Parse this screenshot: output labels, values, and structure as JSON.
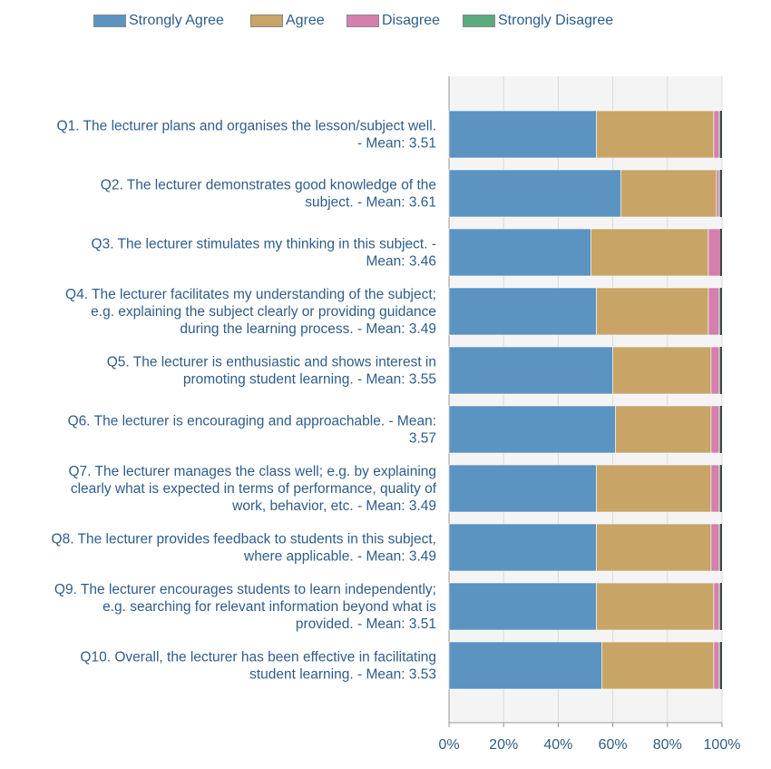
{
  "chart_data": {
    "type": "bar",
    "orientation": "horizontal",
    "stacked": "percent",
    "categories": [
      "Q1. The lecturer plans and organises the lesson/subject well. - Mean: 3.51",
      "Q2. The lecturer demonstrates good knowledge of the subject. - Mean: 3.61",
      "Q3. The lecturer stimulates my thinking in this subject. - Mean: 3.46",
      "Q4. The lecturer facilitates my understanding of the subject; e.g. explaining the subject clearly or providing guidance during the learning process. - Mean: 3.49",
      "Q5. The lecturer is enthusiastic and shows interest in promoting student learning. - Mean: 3.55",
      "Q6. The lecturer is encouraging and approachable. - Mean: 3.57",
      "Q7. The lecturer manages the class well; e.g. by explaining clearly what is expected in terms of performance, quality of work, behavior, etc. - Mean: 3.49",
      "Q8. The lecturer provides feedback to students in this subject, where applicable. - Mean: 3.49",
      "Q9. The lecturer encourages students to learn independently; e.g. searching for relevant information beyond what is provided. - Mean: 3.51",
      "Q10. Overall, the lecturer has been effective in facilitating student learning. - Mean: 3.53"
    ],
    "category_lines": [
      [
        "Q1. The lecturer plans and organises the lesson/subject well.",
        "- Mean: 3.51"
      ],
      [
        "Q2. The lecturer demonstrates good knowledge of the",
        "subject. - Mean: 3.61"
      ],
      [
        "Q3. The lecturer stimulates my thinking in this subject. -",
        "Mean: 3.46"
      ],
      [
        "Q4. The lecturer facilitates my understanding of the subject;",
        "e.g. explaining the subject clearly or providing guidance",
        "during the learning process. - Mean: 3.49"
      ],
      [
        "Q5. The lecturer is enthusiastic and shows interest in",
        "promoting student learning. - Mean: 3.55"
      ],
      [
        "Q6. The lecturer is encouraging and approachable. - Mean:",
        "3.57"
      ],
      [
        "Q7. The lecturer manages the class well; e.g. by explaining",
        "clearly what is expected in terms of performance, quality of",
        "work, behavior, etc. - Mean: 3.49"
      ],
      [
        "Q8. The lecturer provides feedback to students in this subject,",
        "where applicable. - Mean: 3.49"
      ],
      [
        "Q9. The lecturer encourages students to learn independently;",
        "e.g. searching for relevant information beyond what is",
        "provided. - Mean: 3.51"
      ],
      [
        "Q10. Overall, the lecturer has been effective in facilitating",
        "student learning. - Mean: 3.53"
      ]
    ],
    "series": [
      {
        "name": "Strongly Agree",
        "color": "#5b93c1",
        "values": [
          54,
          63,
          52,
          54,
          60,
          61,
          54,
          54,
          54,
          56
        ]
      },
      {
        "name": "Agree",
        "color": "#c8a566",
        "values": [
          43,
          35,
          43,
          41,
          36,
          35,
          42,
          42,
          43,
          41
        ]
      },
      {
        "name": "Disagree",
        "color": "#d47fad",
        "values": [
          2,
          1,
          5,
          4,
          3,
          3,
          3,
          3,
          2,
          2
        ]
      },
      {
        "name": "Strongly Disagree",
        "color": "#5aab7e",
        "values": [
          1,
          1,
          0,
          1,
          1,
          1,
          1,
          1,
          1,
          1
        ]
      }
    ],
    "xlim": [
      0,
      100
    ],
    "xticks": [
      "0%",
      "20%",
      "40%",
      "60%",
      "80%",
      "100%"
    ],
    "grid": true,
    "legend_position": "top"
  }
}
